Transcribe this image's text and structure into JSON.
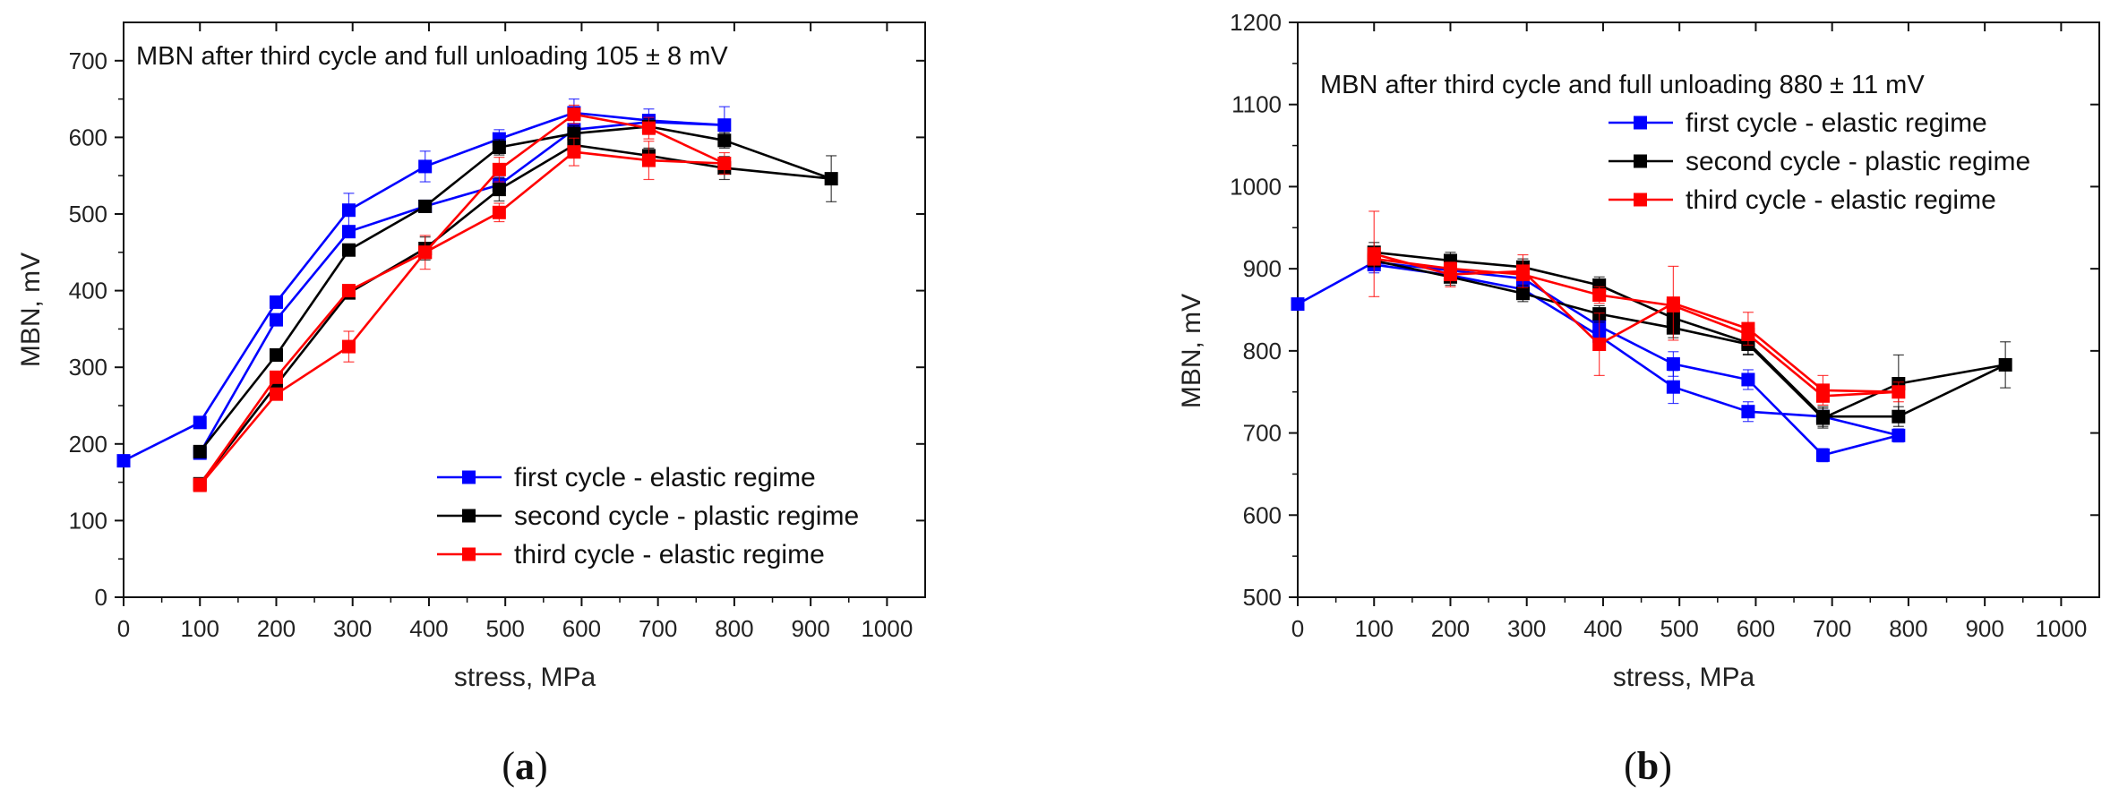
{
  "chart_data": [
    {
      "type": "line",
      "panel": "a",
      "caption": "(a)",
      "caption_prefix": "(",
      "caption_letter": "a",
      "caption_suffix": ")",
      "title": "MBN after third cycle and full unloading 105 ± 8 mV",
      "xlabel": "stress, MPa",
      "ylabel": "MBN, mV",
      "xlim": [
        0,
        1050
      ],
      "ylim": [
        0,
        750
      ],
      "xticks": [
        0,
        100,
        200,
        300,
        400,
        500,
        600,
        700,
        800,
        900,
        1000
      ],
      "yticks": [
        0,
        100,
        200,
        300,
        400,
        500,
        600,
        700
      ],
      "legend_position": "bottom-right",
      "series": [
        {
          "name": "first cycle - elastic regime",
          "color": "#0000ff",
          "points": [
            {
              "x": 0,
              "y": 178,
              "err": 0
            },
            {
              "x": 100,
              "y": 228,
              "err": 0
            },
            {
              "x": 200,
              "y": 385,
              "err": 0
            },
            {
              "x": 295,
              "y": 505,
              "err": 22
            },
            {
              "x": 395,
              "y": 562,
              "err": 20
            },
            {
              "x": 492,
              "y": 598,
              "err": 12
            },
            {
              "x": 590,
              "y": 632,
              "err": 18
            },
            {
              "x": 688,
              "y": 622,
              "err": 15
            },
            {
              "x": 787,
              "y": 616,
              "err": 24
            },
            {
              "x": 688,
              "y": 620,
              "err": 0
            },
            {
              "x": 590,
              "y": 610,
              "err": 0
            },
            {
              "x": 492,
              "y": 538,
              "err": 10
            },
            {
              "x": 395,
              "y": 510,
              "err": 0
            },
            {
              "x": 295,
              "y": 477,
              "err": 0
            },
            {
              "x": 200,
              "y": 362,
              "err": 0
            },
            {
              "x": 100,
              "y": 188,
              "err": 0
            }
          ]
        },
        {
          "name": "second cycle - plastic regime",
          "color": "#000000",
          "points": [
            {
              "x": 100,
              "y": 190,
              "err": 0
            },
            {
              "x": 200,
              "y": 316,
              "err": 0
            },
            {
              "x": 295,
              "y": 453,
              "err": 0
            },
            {
              "x": 395,
              "y": 510,
              "err": 0
            },
            {
              "x": 492,
              "y": 587,
              "err": 10
            },
            {
              "x": 590,
              "y": 605,
              "err": 10
            },
            {
              "x": 688,
              "y": 614,
              "err": 10
            },
            {
              "x": 787,
              "y": 596,
              "err": 10
            },
            {
              "x": 927,
              "y": 546,
              "err": 30
            },
            {
              "x": 787,
              "y": 560,
              "err": 15
            },
            {
              "x": 688,
              "y": 576,
              "err": 10
            },
            {
              "x": 590,
              "y": 590,
              "err": 10
            },
            {
              "x": 492,
              "y": 532,
              "err": 15
            },
            {
              "x": 395,
              "y": 455,
              "err": 15
            },
            {
              "x": 295,
              "y": 397,
              "err": 0
            },
            {
              "x": 200,
              "y": 277,
              "err": 0
            },
            {
              "x": 100,
              "y": 148,
              "err": 0
            }
          ]
        },
        {
          "name": "third cycle - elastic regime",
          "color": "#ff0000",
          "points": [
            {
              "x": 100,
              "y": 147,
              "err": 0
            },
            {
              "x": 200,
              "y": 287,
              "err": 0
            },
            {
              "x": 295,
              "y": 400,
              "err": 0
            },
            {
              "x": 395,
              "y": 450,
              "err": 22
            },
            {
              "x": 492,
              "y": 558,
              "err": 16
            },
            {
              "x": 590,
              "y": 630,
              "err": 12
            },
            {
              "x": 688,
              "y": 612,
              "err": 14
            },
            {
              "x": 787,
              "y": 566,
              "err": 14
            },
            {
              "x": 688,
              "y": 570,
              "err": 25
            },
            {
              "x": 590,
              "y": 581,
              "err": 18
            },
            {
              "x": 492,
              "y": 502,
              "err": 12
            },
            {
              "x": 395,
              "y": 450,
              "err": 0
            },
            {
              "x": 295,
              "y": 327,
              "err": 20
            },
            {
              "x": 200,
              "y": 265,
              "err": 0
            },
            {
              "x": 100,
              "y": 146,
              "err": 0
            }
          ]
        }
      ]
    },
    {
      "type": "line",
      "panel": "b",
      "caption": "(b)",
      "caption_prefix": "(",
      "caption_letter": "b",
      "caption_suffix": ")",
      "title": "MBN after third cycle and full unloading 880 ± 11 mV",
      "xlabel": "stress, MPa",
      "ylabel": "MBN, mV",
      "xlim": [
        0,
        1050
      ],
      "ylim": [
        500,
        1200
      ],
      "xticks": [
        0,
        100,
        200,
        300,
        400,
        500,
        600,
        700,
        800,
        900,
        1000
      ],
      "yticks": [
        500,
        600,
        700,
        800,
        900,
        1000,
        1100,
        1200
      ],
      "legend_position": "top-right",
      "series": [
        {
          "name": "first cycle - elastic regime",
          "color": "#0000ff",
          "points": [
            {
              "x": 0,
              "y": 857,
              "err": 0
            },
            {
              "x": 100,
              "y": 908,
              "err": 0
            },
            {
              "x": 200,
              "y": 898,
              "err": 0
            },
            {
              "x": 295,
              "y": 888,
              "err": 10
            },
            {
              "x": 395,
              "y": 830,
              "err": 15
            },
            {
              "x": 492,
              "y": 784,
              "err": 15
            },
            {
              "x": 590,
              "y": 765,
              "err": 12
            },
            {
              "x": 688,
              "y": 673,
              "err": 8
            },
            {
              "x": 787,
              "y": 697,
              "err": 8
            },
            {
              "x": 688,
              "y": 720,
              "err": 0
            },
            {
              "x": 590,
              "y": 726,
              "err": 12
            },
            {
              "x": 492,
              "y": 756,
              "err": 20
            },
            {
              "x": 395,
              "y": 818,
              "err": 12
            },
            {
              "x": 295,
              "y": 875,
              "err": 10
            },
            {
              "x": 200,
              "y": 892,
              "err": 0
            },
            {
              "x": 100,
              "y": 905,
              "err": 10
            }
          ]
        },
        {
          "name": "second cycle - plastic regime",
          "color": "#000000",
          "points": [
            {
              "x": 100,
              "y": 920,
              "err": 12
            },
            {
              "x": 200,
              "y": 910,
              "err": 10
            },
            {
              "x": 295,
              "y": 902,
              "err": 10
            },
            {
              "x": 395,
              "y": 880,
              "err": 10
            },
            {
              "x": 492,
              "y": 840,
              "err": 12
            },
            {
              "x": 590,
              "y": 810,
              "err": 15
            },
            {
              "x": 688,
              "y": 720,
              "err": 12
            },
            {
              "x": 787,
              "y": 720,
              "err": 12
            },
            {
              "x": 927,
              "y": 783,
              "err": 28
            },
            {
              "x": 787,
              "y": 760,
              "err": 35
            },
            {
              "x": 688,
              "y": 718,
              "err": 12
            },
            {
              "x": 590,
              "y": 808,
              "err": 12
            },
            {
              "x": 492,
              "y": 828,
              "err": 12
            },
            {
              "x": 395,
              "y": 845,
              "err": 10
            },
            {
              "x": 295,
              "y": 870,
              "err": 10
            },
            {
              "x": 200,
              "y": 890,
              "err": 10
            },
            {
              "x": 100,
              "y": 910,
              "err": 0
            }
          ]
        },
        {
          "name": "third cycle - elastic regime",
          "color": "#ff0000",
          "points": [
            {
              "x": 100,
              "y": 918,
              "err": 52
            },
            {
              "x": 200,
              "y": 893,
              "err": 15
            },
            {
              "x": 295,
              "y": 897,
              "err": 20
            },
            {
              "x": 395,
              "y": 808,
              "err": 38
            },
            {
              "x": 492,
              "y": 858,
              "err": 45
            },
            {
              "x": 590,
              "y": 827,
              "err": 20
            },
            {
              "x": 688,
              "y": 752,
              "err": 18
            },
            {
              "x": 787,
              "y": 750,
              "err": 12
            },
            {
              "x": 688,
              "y": 745,
              "err": 0
            },
            {
              "x": 590,
              "y": 820,
              "err": 0
            },
            {
              "x": 492,
              "y": 855,
              "err": 0
            },
            {
              "x": 395,
              "y": 868,
              "err": 10
            },
            {
              "x": 295,
              "y": 893,
              "err": 0
            },
            {
              "x": 200,
              "y": 900,
              "err": 0
            },
            {
              "x": 100,
              "y": 912,
              "err": 0
            }
          ]
        }
      ]
    }
  ]
}
